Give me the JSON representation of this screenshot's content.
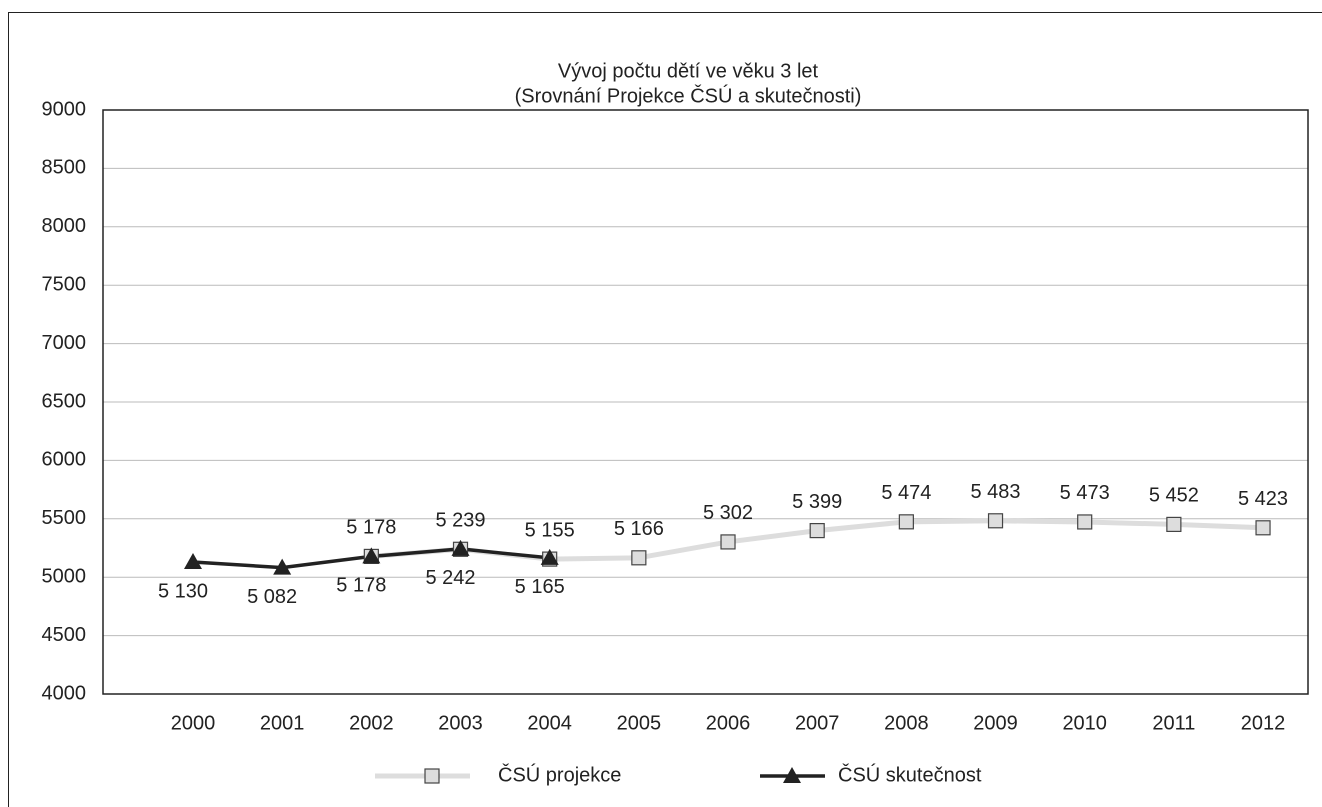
{
  "chart_data": {
    "type": "line",
    "title": "Vývoj počtu dětí ve věku 3 let",
    "subtitle": "(Srovnání Projekce ČSÚ a skutečnosti)",
    "categories": [
      "2000",
      "2001",
      "2002",
      "2003",
      "2004",
      "2005",
      "2006",
      "2007",
      "2008",
      "2009",
      "2010",
      "2011",
      "2012"
    ],
    "series": [
      {
        "name": "ČSÚ projekce",
        "color": "#dddddd",
        "values": [
          null,
          null,
          5178,
          5239,
          5155,
          5166,
          5302,
          5399,
          5474,
          5483,
          5473,
          5452,
          5423
        ],
        "value_labels": [
          null,
          null,
          "5 178",
          "5 239",
          "5 155",
          "5 166",
          "5 302",
          "5 399",
          "5 474",
          "5 483",
          "5 473",
          "5 452",
          "5 423"
        ]
      },
      {
        "name": "ČSÚ skutečnost",
        "color": "#222222",
        "values": [
          5130,
          5082,
          5178,
          5242,
          5165,
          null,
          null,
          null,
          null,
          null,
          null,
          null,
          null
        ],
        "value_labels": [
          "5 130",
          "5 082",
          "5 178",
          "5 242",
          "5 165",
          null,
          null,
          null,
          null,
          null,
          null,
          null,
          null
        ]
      }
    ],
    "ylim": [
      4000,
      9000
    ],
    "yticks": [
      4000,
      4500,
      5000,
      5500,
      6000,
      6500,
      7000,
      7500,
      8000,
      8500,
      9000
    ],
    "grid": true,
    "legend": "bottom"
  }
}
